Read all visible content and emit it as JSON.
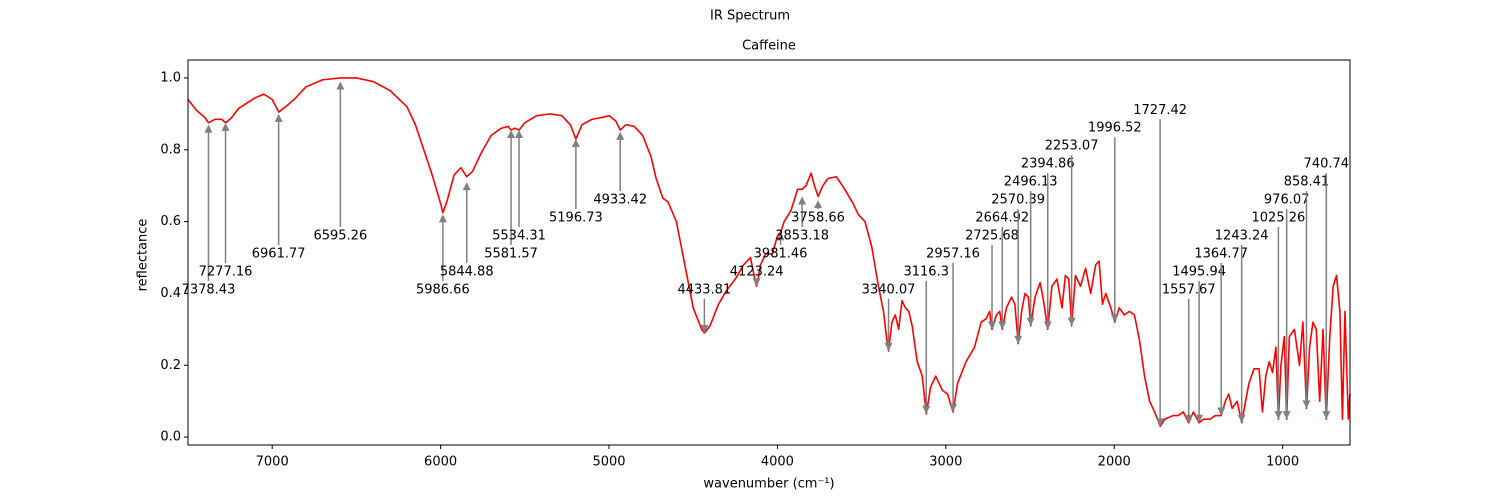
{
  "chart_data": {
    "type": "line",
    "title": "IR Spectrum",
    "subtitle": "Caffeine",
    "x_label": "wavenumber (cm⁻¹)",
    "y_label": "reflectance",
    "xlim": [
      7500,
      600
    ],
    "ylim": [
      -0.022,
      1.05
    ],
    "xticks": [
      7000,
      6000,
      5000,
      4000,
      3000,
      2000,
      1000
    ],
    "yticks": [
      {
        "value": 0,
        "label": "0.0"
      },
      {
        "value": 0.2,
        "label": "0.2"
      },
      {
        "value": 0.4,
        "label": "0.4"
      },
      {
        "value": 0.6,
        "label": "0.6"
      },
      {
        "value": 0.8,
        "label": "0.8"
      },
      {
        "value": 1,
        "label": "1.0"
      }
    ],
    "color": "#ff0000",
    "annotation_color": "#808080",
    "x": [
      7500,
      7450,
      7400,
      7378,
      7340,
      7300,
      7277,
      7240,
      7200,
      7150,
      7100,
      7050,
      7000,
      6961,
      6920,
      6870,
      6800,
      6700,
      6595,
      6500,
      6400,
      6300,
      6200,
      6150,
      6100,
      6050,
      6000,
      5986,
      5960,
      5920,
      5880,
      5845,
      5810,
      5760,
      5700,
      5640,
      5600,
      5581,
      5560,
      5534,
      5500,
      5430,
      5350,
      5280,
      5230,
      5197,
      5160,
      5100,
      5040,
      5000,
      4960,
      4933,
      4900,
      4850,
      4800,
      4750,
      4720,
      4680,
      4650,
      4600,
      4550,
      4500,
      4450,
      4433,
      4400,
      4350,
      4300,
      4250,
      4200,
      4160,
      4130,
      4123,
      4100,
      4070,
      4030,
      4000,
      3981,
      3960,
      3920,
      3880,
      3853,
      3830,
      3800,
      3780,
      3758,
      3730,
      3700,
      3650,
      3600,
      3550,
      3520,
      3480,
      3440,
      3400,
      3370,
      3350,
      3340,
      3320,
      3300,
      3280,
      3260,
      3240,
      3220,
      3200,
      3170,
      3140,
      3116,
      3090,
      3060,
      3020,
      2990,
      2957,
      2930,
      2880,
      2830,
      2790,
      2760,
      2740,
      2726,
      2700,
      2680,
      2665,
      2640,
      2610,
      2590,
      2570,
      2550,
      2530,
      2510,
      2496,
      2470,
      2440,
      2420,
      2395,
      2370,
      2340,
      2310,
      2290,
      2270,
      2253,
      2230,
      2200,
      2170,
      2140,
      2110,
      2090,
      2070,
      2050,
      2020,
      1997,
      1970,
      1940,
      1910,
      1880,
      1850,
      1820,
      1790,
      1760,
      1727,
      1700,
      1650,
      1620,
      1590,
      1558,
      1530,
      1496,
      1470,
      1430,
      1400,
      1365,
      1340,
      1320,
      1300,
      1270,
      1243,
      1220,
      1200,
      1170,
      1140,
      1120,
      1100,
      1080,
      1060,
      1040,
      1025,
      1010,
      990,
      976,
      960,
      930,
      900,
      880,
      858,
      840,
      820,
      800,
      780,
      760,
      741,
      720,
      700,
      680,
      660,
      645,
      630,
      610,
      600
    ],
    "values": [
      0.94,
      0.91,
      0.89,
      0.875,
      0.885,
      0.885,
      0.875,
      0.89,
      0.915,
      0.93,
      0.945,
      0.955,
      0.94,
      0.905,
      0.92,
      0.94,
      0.975,
      0.995,
      1.0,
      1.0,
      0.99,
      0.965,
      0.92,
      0.87,
      0.8,
      0.73,
      0.65,
      0.625,
      0.66,
      0.73,
      0.75,
      0.725,
      0.74,
      0.79,
      0.84,
      0.86,
      0.865,
      0.855,
      0.86,
      0.855,
      0.875,
      0.895,
      0.9,
      0.895,
      0.87,
      0.83,
      0.87,
      0.885,
      0.89,
      0.895,
      0.88,
      0.855,
      0.87,
      0.865,
      0.84,
      0.78,
      0.72,
      0.665,
      0.655,
      0.6,
      0.48,
      0.36,
      0.3,
      0.29,
      0.31,
      0.37,
      0.41,
      0.44,
      0.48,
      0.5,
      0.43,
      0.42,
      0.48,
      0.51,
      0.51,
      0.56,
      0.57,
      0.6,
      0.63,
      0.69,
      0.69,
      0.7,
      0.735,
      0.7,
      0.67,
      0.7,
      0.72,
      0.725,
      0.69,
      0.65,
      0.62,
      0.6,
      0.53,
      0.42,
      0.35,
      0.27,
      0.24,
      0.32,
      0.34,
      0.3,
      0.38,
      0.36,
      0.35,
      0.31,
      0.21,
      0.17,
      0.065,
      0.14,
      0.17,
      0.13,
      0.12,
      0.07,
      0.15,
      0.21,
      0.25,
      0.32,
      0.33,
      0.35,
      0.3,
      0.34,
      0.35,
      0.3,
      0.36,
      0.39,
      0.37,
      0.26,
      0.35,
      0.4,
      0.39,
      0.31,
      0.39,
      0.43,
      0.38,
      0.3,
      0.42,
      0.44,
      0.36,
      0.45,
      0.44,
      0.31,
      0.45,
      0.42,
      0.47,
      0.4,
      0.48,
      0.49,
      0.37,
      0.4,
      0.36,
      0.32,
      0.36,
      0.34,
      0.35,
      0.34,
      0.27,
      0.17,
      0.1,
      0.07,
      0.03,
      0.05,
      0.06,
      0.06,
      0.07,
      0.04,
      0.07,
      0.04,
      0.05,
      0.05,
      0.06,
      0.06,
      0.1,
      0.12,
      0.08,
      0.1,
      0.04,
      0.1,
      0.15,
      0.19,
      0.19,
      0.07,
      0.17,
      0.21,
      0.18,
      0.25,
      0.05,
      0.2,
      0.28,
      0.05,
      0.28,
      0.3,
      0.2,
      0.32,
      0.08,
      0.25,
      0.32,
      0.3,
      0.1,
      0.3,
      0.05,
      0.28,
      0.42,
      0.45,
      0.35,
      0.05,
      0.35,
      0.05,
      0.12
    ],
    "annotations": [
      {
        "x": 7378.43,
        "y": 0.87
      },
      {
        "x": 7277.16,
        "y": 0.875
      },
      {
        "x": 6961.77,
        "y": 0.9
      },
      {
        "x": 6595.26,
        "y": 0.99
      },
      {
        "x": 5986.66,
        "y": 0.62
      },
      {
        "x": 5844.88,
        "y": 0.71
      },
      {
        "x": 5581.57,
        "y": 0.855
      },
      {
        "x": 5534.31,
        "y": 0.855
      },
      {
        "x": 5196.73,
        "y": 0.83
      },
      {
        "x": 4933.42,
        "y": 0.85
      },
      {
        "x": 4433.81,
        "y": 0.29
      },
      {
        "x": 4123.24,
        "y": 0.42
      },
      {
        "x": 3981.46,
        "y": 0.57
      },
      {
        "x": 3853.18,
        "y": 0.67
      },
      {
        "x": 3758.66,
        "y": 0.66
      },
      {
        "x": 3340.07,
        "y": 0.24
      },
      {
        "x": 3116.3,
        "y": 0.065
      },
      {
        "x": 2957.16,
        "y": 0.07
      },
      {
        "x": 2725.68,
        "y": 0.3
      },
      {
        "x": 2664.92,
        "y": 0.3
      },
      {
        "x": 2570.39,
        "y": 0.26
      },
      {
        "x": 2496.13,
        "y": 0.31
      },
      {
        "x": 2394.86,
        "y": 0.3
      },
      {
        "x": 2253.07,
        "y": 0.31
      },
      {
        "x": 1996.52,
        "y": 0.32
      },
      {
        "x": 1727.42,
        "y": 0.03
      },
      {
        "x": 1557.67,
        "y": 0.04
      },
      {
        "x": 1495.94,
        "y": 0.04
      },
      {
        "x": 1364.77,
        "y": 0.06
      },
      {
        "x": 1243.24,
        "y": 0.04
      },
      {
        "x": 1025.26,
        "y": 0.05
      },
      {
        "x": 976.07,
        "y": 0.05
      },
      {
        "x": 858.41,
        "y": 0.08
      },
      {
        "x": 740.74,
        "y": 0.05
      }
    ]
  }
}
